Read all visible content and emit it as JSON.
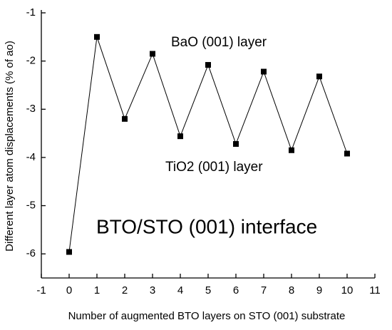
{
  "chart_data": {
    "type": "line",
    "x_label": "Number of augmented BTO layers on STO (001) substrate",
    "y_label": "Different layer atom displacements (% of ao)",
    "annotations": [
      "BaO (001)  layer",
      "TiO2 (001) layer",
      "BTO/STO (001) interface"
    ],
    "x": [
      0,
      1,
      2,
      3,
      4,
      5,
      6,
      7,
      8,
      9,
      10
    ],
    "series": [
      {
        "color": "#000000",
        "values": [
          -5.96,
          -1.5,
          -3.2,
          -1.85,
          -3.56,
          -2.08,
          -3.72,
          -2.22,
          -3.85,
          -2.32,
          -3.92
        ]
      }
    ],
    "xlim": [
      -1,
      11
    ],
    "xticks": [
      -1,
      0,
      1,
      2,
      3,
      4,
      5,
      6,
      7,
      8,
      9,
      10,
      11
    ],
    "ylim": [
      -6.5,
      -1
    ],
    "yticks": [
      -1,
      -2,
      -3,
      -4,
      -5,
      -6
    ]
  }
}
